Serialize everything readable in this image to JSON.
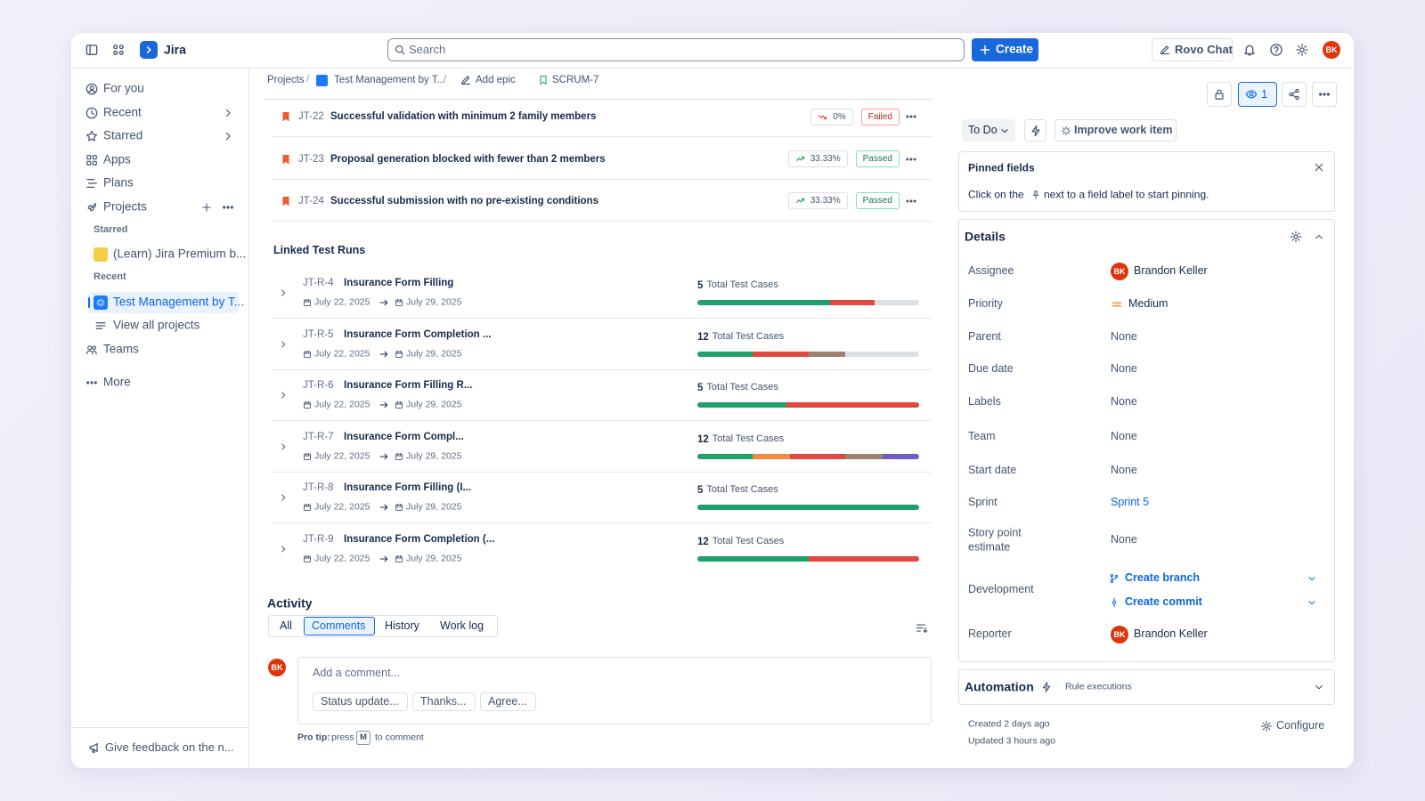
{
  "topbar": {
    "app": "Jira",
    "search": "Search",
    "create": "Create",
    "rovo": "Rovo Chat",
    "avatar": "BK"
  },
  "sidebar": {
    "items": [
      "For you",
      "Recent",
      "Starred",
      "Apps",
      "Plans",
      "Projects"
    ],
    "starred_label": "Starred",
    "starred": [
      "(Learn) Jira Premium b..."
    ],
    "recent_label": "Recent",
    "recent": [
      "Test Management by T..."
    ],
    "view_all": "View all projects",
    "teams": "Teams",
    "more": "More",
    "feedback": "Give feedback on the n..."
  },
  "breadcrumbs": [
    "Projects",
    "Test Management by T...",
    "Add epic",
    "SCRUM-7"
  ],
  "tests": [
    {
      "key": "JT-22",
      "title": "Successful validation with minimum 2 family members",
      "trend": "0%",
      "status": "Failed"
    },
    {
      "key": "JT-23",
      "title": "Proposal generation blocked with fewer than 2 members",
      "trend": "33.33%",
      "status": "Passed"
    },
    {
      "key": "JT-24",
      "title": "Successful submission with no pre-existing conditions",
      "trend": "33.33%",
      "status": "Passed"
    }
  ],
  "linked_runs": {
    "title": "Linked Test Runs",
    "total_label": "Total Test Cases",
    "runs": [
      {
        "key": "JT-R-4",
        "name": "Insurance Form Filling",
        "start": "July 22, 2025",
        "end": "July 29, 2025",
        "total": 5,
        "segments": [
          {
            "count": 3,
            "color": "#22a06b"
          },
          {
            "count": 1,
            "color": "#e2483d"
          },
          {
            "count": 1,
            "color": "#dcdfe4"
          }
        ]
      },
      {
        "key": "JT-R-5",
        "name": "Insurance Form Completion ...",
        "start": "July 22, 2025",
        "end": "July 29, 2025",
        "total": 12,
        "segments": [
          {
            "count": 3,
            "color": "#22a06b"
          },
          {
            "count": 3,
            "color": "#e2483d"
          },
          {
            "count": 2,
            "color": "#9f8170"
          },
          {
            "count": 4,
            "color": "#dcdfe4"
          }
        ]
      },
      {
        "key": "JT-R-6",
        "name": "Insurance Form Filling R...",
        "start": "July 22, 2025",
        "end": "July 29, 2025",
        "total": 5,
        "segments": [
          {
            "count": 2,
            "color": "#22a06b"
          },
          {
            "count": 3,
            "color": "#e2483d"
          }
        ]
      },
      {
        "key": "JT-R-7",
        "name": "Insurance Form Compl...",
        "start": "July 22, 2025",
        "end": "July 29, 2025",
        "total": 12,
        "segments": [
          {
            "count": 3,
            "color": "#22a06b"
          },
          {
            "count": 2,
            "color": "#f38a3f"
          },
          {
            "count": 3,
            "color": "#e2483d"
          },
          {
            "count": 2,
            "color": "#9f8170"
          },
          {
            "count": 2,
            "color": "#6e5dc6"
          }
        ]
      },
      {
        "key": "JT-R-8",
        "name": "Insurance Form Filling (I...",
        "start": "July 22, 2025",
        "end": "July 29, 2025",
        "total": 5,
        "segments": [
          {
            "count": 5,
            "color": "#22a06b"
          }
        ]
      },
      {
        "key": "JT-R-9",
        "name": "Insurance Form Completion (...",
        "start": "July 22, 2025",
        "end": "July 29, 2025",
        "total": 12,
        "segments": [
          {
            "count": 6,
            "color": "#22a06b"
          },
          {
            "count": 6,
            "color": "#e2483d"
          }
        ]
      }
    ]
  },
  "activity": {
    "title": "Activity",
    "tabs": [
      "All",
      "Comments",
      "History",
      "Work log"
    ],
    "active_tab": 1,
    "avatar": "BK",
    "placeholder": "Add a comment...",
    "quick": [
      "Status update...",
      "Thanks...",
      "Agree..."
    ],
    "tip_bold": "Pro tip:",
    "tip_pre": "press",
    "tip_key": "M",
    "tip_post": "to comment"
  },
  "right": {
    "watchers": "1",
    "status": "To Do",
    "improve": "Improve work item",
    "pinned": {
      "title": "Pinned fields",
      "text_pre": "Click on the",
      "text_post": "next to a field label to start pinning."
    },
    "details": {
      "title": "Details",
      "fields": [
        {
          "label": "Assignee",
          "value": "Brandon Keller",
          "avatar": "BK"
        },
        {
          "label": "Priority",
          "value": "Medium"
        },
        {
          "label": "Parent",
          "value": "None"
        },
        {
          "label": "Due date",
          "value": "None"
        },
        {
          "label": "Labels",
          "value": "None"
        },
        {
          "label": "Team",
          "value": "None"
        },
        {
          "label": "Start date",
          "value": "None"
        },
        {
          "label": "Sprint",
          "value": "Sprint 5",
          "link": true
        },
        {
          "label": "Story point estimate",
          "value": "None"
        },
        {
          "label": "Development",
          "values": [
            "Create branch",
            "Create commit"
          ],
          "link": true
        },
        {
          "label": "Reporter",
          "value": "Brandon Keller",
          "avatar": "BK"
        }
      ]
    },
    "automation": {
      "title": "Automation",
      "sub": "Rule executions"
    },
    "created": "Created 2 days ago",
    "updated": "Updated 3 hours ago",
    "configure": "Configure"
  }
}
